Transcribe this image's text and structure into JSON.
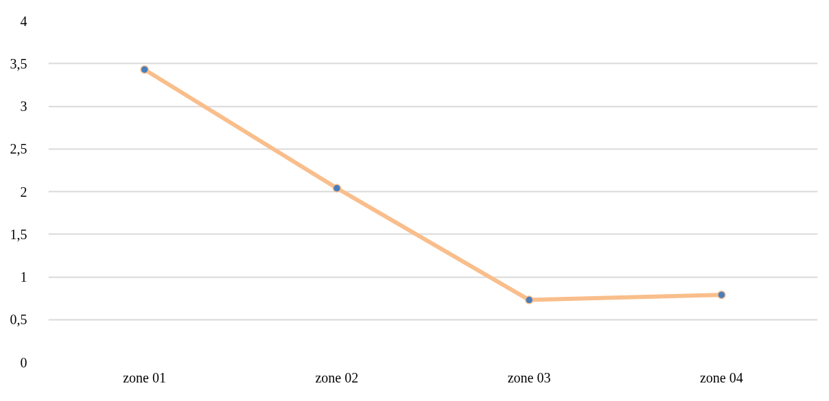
{
  "chart_data": {
    "type": "line",
    "categories": [
      "zone 01",
      "zone 02",
      "zone 03",
      "zone 04"
    ],
    "series": [
      {
        "color": "#f9be8b",
        "values": [
          3.43,
          2.04,
          0.73,
          0.79
        ]
      }
    ],
    "ylim": [
      0,
      4
    ],
    "yticks": [
      {
        "value": 0,
        "label": "0"
      },
      {
        "value": 0.5,
        "label": "0,5"
      },
      {
        "value": 1,
        "label": "1"
      },
      {
        "value": 1.5,
        "label": "1,5"
      },
      {
        "value": 2,
        "label": "2"
      },
      {
        "value": 2.5,
        "label": "2,5"
      },
      {
        "value": 3,
        "label": "3"
      },
      {
        "value": 3.5,
        "label": "3,5"
      },
      {
        "value": 4,
        "label": "4"
      }
    ],
    "grid": "y",
    "marker": "circle",
    "line_style": "solid"
  }
}
